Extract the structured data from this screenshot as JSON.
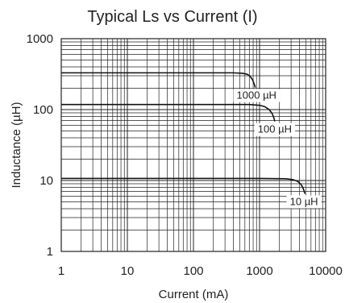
{
  "chart_data": {
    "type": "line",
    "title": "Typical Ls vs Current (I)",
    "xlabel": "Current (mA)",
    "ylabel": "Inductance (µH)",
    "xscale": "log",
    "yscale": "log",
    "xlim": [
      1,
      10000
    ],
    "ylim": [
      1,
      1000
    ],
    "grid": true,
    "x_tick_labels": [
      "1",
      "10",
      "100",
      "1000",
      "10000"
    ],
    "y_tick_labels": [
      "1",
      "10",
      "100",
      "1000"
    ],
    "series": [
      {
        "name": "1000 µH",
        "label_at": 900,
        "x": [
          1,
          100,
          400,
          550,
          650,
          720,
          780,
          830,
          860
        ],
        "y": [
          330,
          330,
          330,
          325,
          315,
          295,
          265,
          230,
          205
        ]
      },
      {
        "name": "100 µH",
        "label_at": 1700,
        "x": [
          1,
          100,
          700,
          1000,
          1200,
          1400,
          1550,
          1650,
          1700
        ],
        "y": [
          118,
          118,
          118,
          115,
          110,
          100,
          88,
          76,
          68
        ]
      },
      {
        "name": "10 µH",
        "label_at": 4700,
        "x": [
          1,
          100,
          1000,
          2500,
          3200,
          3800,
          4200,
          4500,
          4700,
          4850
        ],
        "y": [
          10.7,
          10.7,
          10.7,
          10.6,
          10.3,
          9.7,
          8.9,
          8.0,
          7.2,
          6.5
        ]
      }
    ]
  }
}
